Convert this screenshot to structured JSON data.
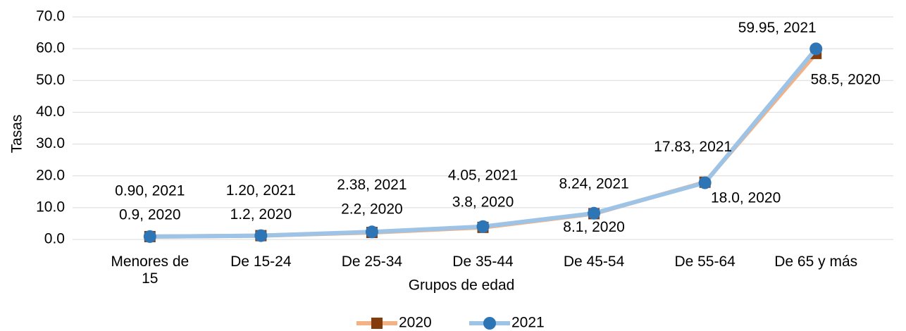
{
  "chart_data": {
    "type": "line",
    "x_label": "Grupos de edad",
    "y_label": "Tasas",
    "categories": [
      "Menores de 15",
      "De 15-24",
      "De 25-34",
      "De 35-44",
      "De 45-54",
      "De 55-64",
      "De 65 y más"
    ],
    "series": [
      {
        "name": "2020",
        "color": "#f4b183",
        "marker_color": "#843c0c",
        "marker": "square",
        "values": [
          0.9,
          1.2,
          2.2,
          3.8,
          8.1,
          18.0,
          58.5
        ],
        "value_labels": [
          "0.9, 2020",
          "1.2, 2020",
          "2.2, 2020",
          "3.8, 2020",
          "8.1, 2020",
          "18.0, 2020",
          "58.5, 2020"
        ]
      },
      {
        "name": "2021",
        "color": "#9dc3e6",
        "marker_color": "#2e75b6",
        "marker": "circle",
        "values": [
          0.9,
          1.2,
          2.38,
          4.05,
          8.24,
          17.83,
          59.95
        ],
        "value_labels": [
          "0.90, 2021",
          "1.20, 2021",
          "2.38, 2021",
          "4.05, 2021",
          "8.24, 2021",
          "17.83, 2021",
          "59.95, 2021"
        ]
      }
    ],
    "ylim": [
      0,
      70
    ],
    "yticks": [
      {
        "value": 0,
        "label": "0.0"
      },
      {
        "value": 10,
        "label": "10.0"
      },
      {
        "value": 20,
        "label": "20.0"
      },
      {
        "value": 30,
        "label": "30.0"
      },
      {
        "value": 40,
        "label": "40.0"
      },
      {
        "value": 50,
        "label": "50.0"
      },
      {
        "value": 60,
        "label": "60.0"
      },
      {
        "value": 70,
        "label": "70.0"
      }
    ],
    "grid": true,
    "legend": "bottom"
  }
}
